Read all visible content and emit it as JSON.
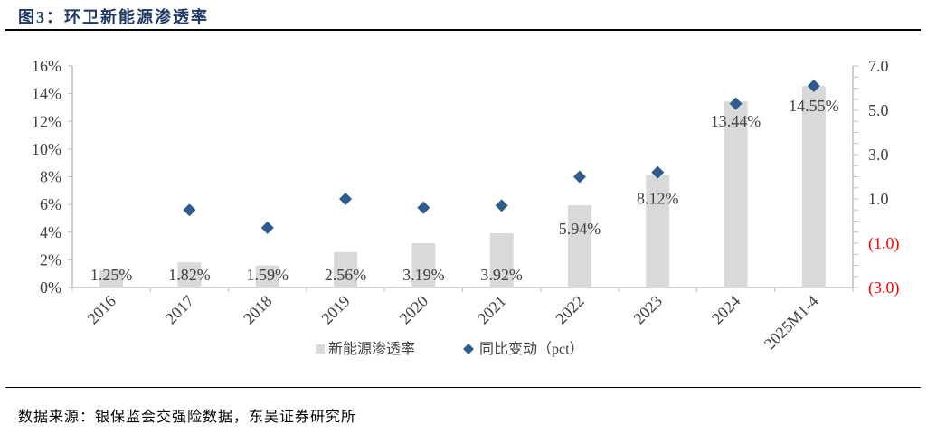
{
  "title": "图3：环卫新能源渗透率",
  "source": "数据来源：银保监会交强险数据，东吴证券研究所",
  "chart_data": {
    "type": "bar+scatter",
    "categories": [
      "2016",
      "2017",
      "2018",
      "2019",
      "2020",
      "2021",
      "2022",
      "2023",
      "2024",
      "2025M1-4"
    ],
    "series": [
      {
        "name": "新能源渗透率",
        "type": "bar",
        "axis": "left",
        "color": "#d9d9d9",
        "values": [
          1.25,
          1.82,
          1.59,
          2.56,
          3.19,
          3.92,
          5.94,
          8.12,
          13.44,
          14.55
        ],
        "labels": [
          "1.25%",
          "1.82%",
          "1.59%",
          "2.56%",
          "3.19%",
          "3.92%",
          "5.94%",
          "8.12%",
          "13.44%",
          "14.55%"
        ]
      },
      {
        "name": "同比变动（pct）",
        "type": "scatter",
        "axis": "right",
        "color": "#2f5c8f",
        "marker": "diamond",
        "values": [
          null,
          0.5,
          -0.3,
          1.0,
          0.6,
          0.7,
          2.0,
          2.2,
          5.3,
          6.1
        ]
      }
    ],
    "left_axis": {
      "range": [
        0,
        16
      ],
      "ticks": [
        "0%",
        "2%",
        "4%",
        "6%",
        "8%",
        "10%",
        "12%",
        "14%",
        "16%"
      ]
    },
    "right_axis": {
      "range": [
        -3,
        7
      ],
      "ticks": [
        "(3.0)",
        "(1.0)",
        "1.0",
        "3.0",
        "5.0",
        "7.0"
      ],
      "negative_color": "#ff0000"
    },
    "legend": "bottom",
    "grid": false
  }
}
